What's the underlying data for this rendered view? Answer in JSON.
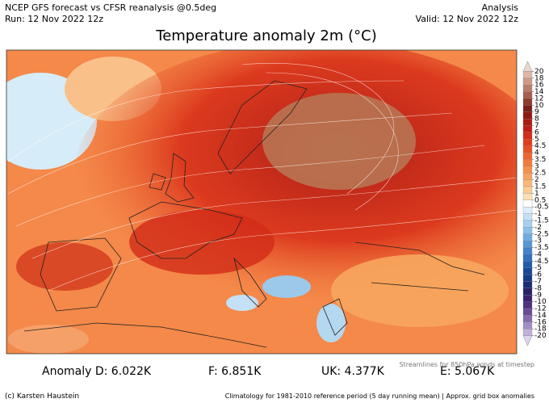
{
  "header": {
    "source": "NCEP GFS forecast vs CFSR reanalysis @0.5deg",
    "run": "Run: 12 Nov 2022 12z",
    "mode": "Analysis",
    "valid": "Valid: 12 Nov 2022 12z",
    "title": "Temperature anomaly 2m (°C)"
  },
  "colorbar": {
    "labels": [
      20,
      18,
      16,
      14,
      12,
      10,
      9,
      8,
      7,
      6,
      5,
      4.5,
      4,
      3.5,
      3,
      2.5,
      2,
      1.5,
      1,
      0.5,
      -0.5,
      -1,
      -1.5,
      -2,
      -2.5,
      -3,
      -3.5,
      -4,
      -4.5,
      -5,
      -6,
      -7,
      -8,
      -9,
      -10,
      -12,
      -14,
      -16,
      -18,
      -20
    ],
    "colors": [
      "#ecd6cc",
      "#dcb8a6",
      "#cc9a86",
      "#bb7c68",
      "#a85e4c",
      "#8e3c30",
      "#7a1e1a",
      "#8e1a14",
      "#a81c14",
      "#c01e14",
      "#d42a18",
      "#e03c1c",
      "#e85024",
      "#ee6430",
      "#f27a3c",
      "#f5904c",
      "#f7a460",
      "#f9b878",
      "#fbcc94",
      "#fde0b4",
      "#ffffff",
      "#ddeefa",
      "#c4e0f5",
      "#a8d0ee",
      "#8cc0e8",
      "#70ace0",
      "#5898d6",
      "#4284ca",
      "#3070bc",
      "#225caa",
      "#1a4896",
      "#183a84",
      "#1c2c74",
      "#2a2068",
      "#3c2070",
      "#50307e",
      "#6a4a94",
      "#866aac",
      "#a28cc4",
      "#c0b0da",
      "#ded4ee"
    ]
  },
  "stats": [
    "Anomaly D: 6.022K",
    "F: 6.851K",
    "UK: 4.377K",
    "E: 5.067K"
  ],
  "note": "Streamlines for 850hPa winds at timestep",
  "footer": {
    "credit": "(c) Karsten Haustein",
    "climatology": "Climatology for 1981-2010 reference period (5 day running mean) | Approx. grid box anomalies"
  }
}
